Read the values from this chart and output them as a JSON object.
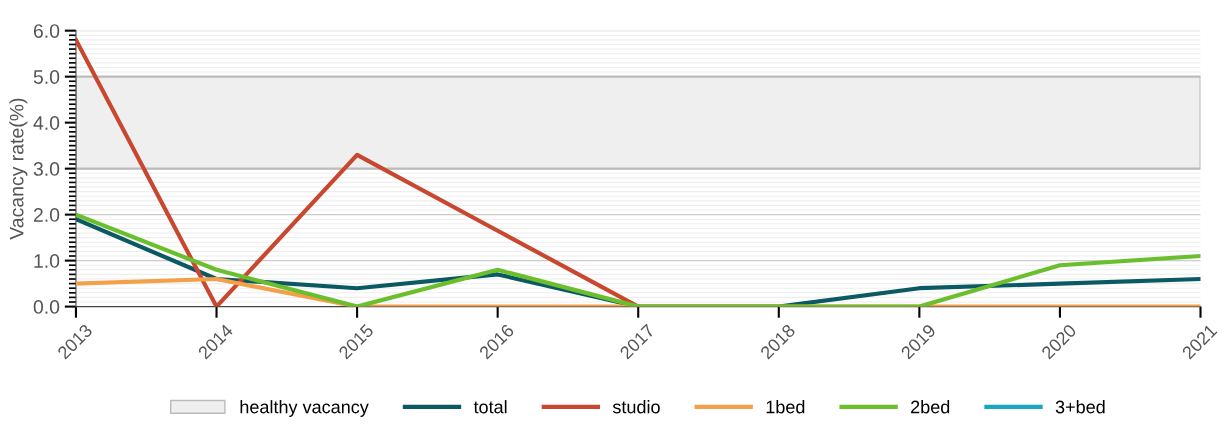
{
  "chart_data": {
    "type": "line",
    "ylabel": "Vacancy rate(%)",
    "categories": [
      "2013",
      "2014",
      "2015",
      "2016",
      "2017",
      "2018",
      "2019",
      "2020",
      "2021"
    ],
    "ylim": [
      0,
      6
    ],
    "yticks": [
      {
        "value": 0,
        "label": "0.0"
      },
      {
        "value": 1,
        "label": "1.0"
      },
      {
        "value": 2,
        "label": "2.0"
      },
      {
        "value": 3,
        "label": "3.0"
      },
      {
        "value": 4,
        "label": "4.0"
      },
      {
        "value": 5,
        "label": "5.0"
      },
      {
        "value": 6,
        "label": "6.0"
      }
    ],
    "bands": [
      {
        "axis": "y",
        "from": 3,
        "to": 5,
        "label": "healthy vacancy",
        "color": "#efefef"
      }
    ],
    "series": [
      {
        "name": "total",
        "color": "#0b5a63",
        "values": [
          1.9,
          0.6,
          0.4,
          0.7,
          0,
          0,
          0.4,
          0.5,
          0.6
        ]
      },
      {
        "name": "studio",
        "color": "#c9472f",
        "values": [
          5.8,
          0,
          3.3,
          1.65,
          0,
          null,
          null,
          null,
          null
        ]
      },
      {
        "name": "1bed",
        "color": "#f4a04a",
        "values": [
          0.5,
          0.6,
          0,
          0,
          0,
          0,
          0,
          0,
          0
        ]
      },
      {
        "name": "2bed",
        "color": "#6cbf2c",
        "values": [
          2.0,
          0.8,
          0,
          0.8,
          0,
          0,
          0,
          0.9,
          1.1
        ]
      },
      {
        "name": "3+bed",
        "color": "#1aa6c1",
        "values": [
          null,
          null,
          null,
          null,
          null,
          null,
          null,
          null,
          null
        ]
      }
    ],
    "grid": "y",
    "legend": "bottom",
    "marker": "none",
    "line_style": "solid"
  }
}
